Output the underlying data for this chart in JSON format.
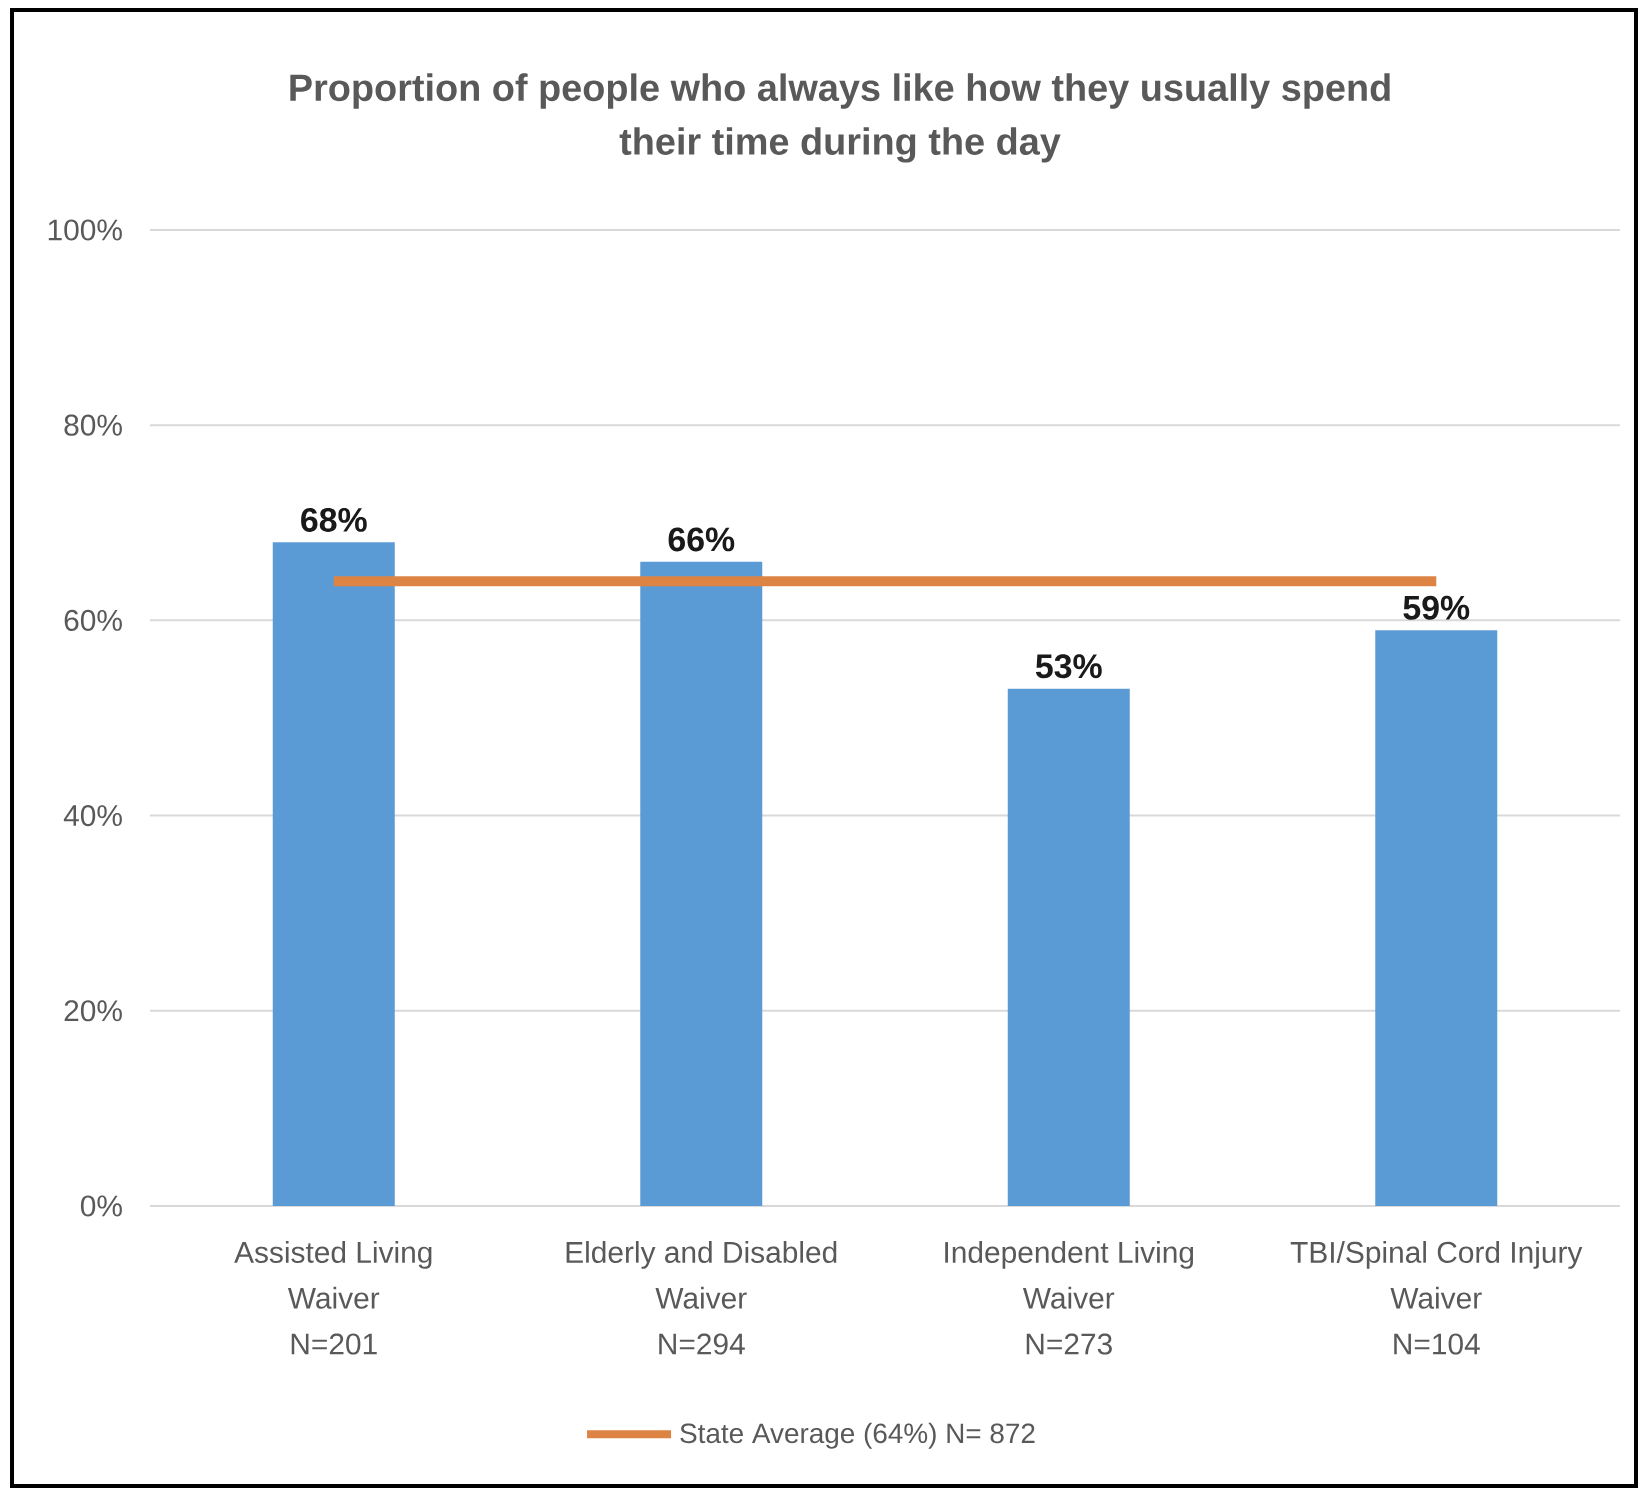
{
  "chart_data": {
    "type": "bar",
    "title": "Proportion of people who always like how they usually spend their time during the day",
    "categories": [
      "Assisted Living Waiver N=201",
      "Elderly and Disabled Waiver N=294",
      "Independent Living Waiver N=273",
      "TBI/Spinal Cord Injury Waiver N=104"
    ],
    "series": [
      {
        "color": "#5b9bd5",
        "values": [
          68,
          66,
          53,
          59
        ],
        "value_labels": [
          "68%",
          "66%",
          "53%",
          "59%"
        ]
      },
      {
        "type": "line",
        "name": "State Average (64%) N= 872",
        "color": "#dd8344",
        "values": [
          64,
          64,
          64,
          64
        ]
      }
    ],
    "ylim": [
      0,
      100
    ],
    "yticks": [
      {
        "value": 0,
        "label": "0%"
      },
      {
        "value": 20,
        "label": "20%"
      },
      {
        "value": 40,
        "label": "40%"
      },
      {
        "value": 60,
        "label": "60%"
      },
      {
        "value": 80,
        "label": "80%"
      },
      {
        "value": 100,
        "label": "100%"
      }
    ],
    "grid": "y",
    "legend": "bottom"
  }
}
